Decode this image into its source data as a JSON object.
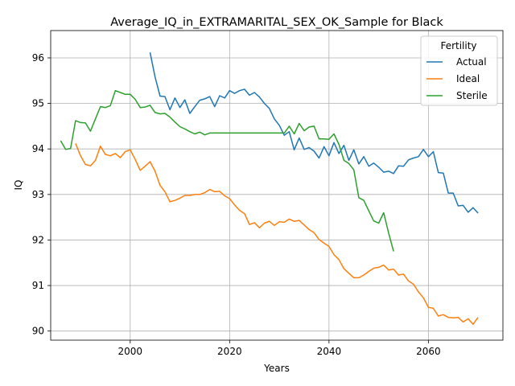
{
  "chart_data": {
    "type": "line",
    "title": "Average_IQ_in_EXTRAMARITAL_SEX_OK_Sample for Black",
    "xlabel": "Years",
    "ylabel": "IQ",
    "xlim": [
      1984,
      2075
    ],
    "ylim": [
      89.8,
      96.6
    ],
    "xticks": [
      "2000",
      "2020",
      "2040",
      "2060"
    ],
    "xtick_values": [
      2000,
      2020,
      2040,
      2060
    ],
    "yticks": [
      "90",
      "91",
      "92",
      "93",
      "94",
      "95",
      "96"
    ],
    "ytick_values": [
      90,
      91,
      92,
      93,
      94,
      95,
      96
    ],
    "grid": true,
    "legend": {
      "title": "Fertility",
      "placement": "top-right"
    },
    "series": [
      {
        "name": "Actual",
        "color": "#1f77b4",
        "x": [
          2004,
          2005,
          2006,
          2007,
          2008,
          2009,
          2010,
          2011,
          2012,
          2013,
          2014,
          2015,
          2016,
          2017,
          2018,
          2019,
          2020,
          2021,
          2022,
          2023,
          2024,
          2025,
          2026,
          2027,
          2028,
          2029,
          2030,
          2031,
          2032,
          2033,
          2034,
          2035,
          2036,
          2037,
          2038,
          2039,
          2040,
          2041,
          2042,
          2043,
          2044,
          2045,
          2046,
          2047,
          2048,
          2049,
          2050,
          2051,
          2052,
          2053,
          2054,
          2055,
          2056,
          2057,
          2058,
          2059,
          2060,
          2061,
          2062,
          2063,
          2064,
          2065,
          2066,
          2067,
          2068,
          2069,
          2070
        ],
        "y": [
          96.12,
          95.58,
          95.16,
          95.15,
          94.86,
          95.12,
          94.91,
          95.08,
          94.78,
          94.93,
          95.07,
          95.1,
          95.15,
          94.93,
          95.17,
          95.12,
          95.28,
          95.22,
          95.28,
          95.31,
          95.18,
          95.24,
          95.14,
          95.0,
          94.89,
          94.66,
          94.52,
          94.3,
          94.38,
          93.98,
          94.24,
          93.99,
          94.03,
          93.95,
          93.8,
          94.05,
          93.85,
          94.14,
          93.9,
          94.08,
          93.75,
          93.98,
          93.67,
          93.83,
          93.62,
          93.69,
          93.6,
          93.49,
          93.51,
          93.46,
          93.63,
          93.62,
          93.76,
          93.8,
          93.83,
          93.99,
          93.83,
          93.94,
          93.48,
          93.47,
          93.03,
          93.03,
          92.75,
          92.76,
          92.61,
          92.71,
          92.59
        ]
      },
      {
        "name": "Ideal",
        "color": "#ff7f0e",
        "x": [
          1989,
          1990,
          1991,
          1992,
          1993,
          1994,
          1995,
          1996,
          1997,
          1998,
          1999,
          2000,
          2001,
          2002,
          2003,
          2004,
          2005,
          2006,
          2007,
          2008,
          2009,
          2010,
          2011,
          2012,
          2013,
          2014,
          2015,
          2016,
          2017,
          2018,
          2019,
          2020,
          2021,
          2022,
          2023,
          2024,
          2025,
          2026,
          2027,
          2028,
          2029,
          2030,
          2031,
          2032,
          2033,
          2034,
          2035,
          2036,
          2037,
          2038,
          2039,
          2040,
          2041,
          2042,
          2043,
          2044,
          2045,
          2046,
          2047,
          2048,
          2049,
          2050,
          2051,
          2052,
          2053,
          2054,
          2055,
          2056,
          2057,
          2058,
          2059,
          2060,
          2061,
          2062,
          2063,
          2064,
          2065,
          2066,
          2067,
          2068,
          2069,
          2070
        ],
        "y": [
          94.12,
          93.85,
          93.66,
          93.63,
          93.75,
          94.06,
          93.88,
          93.85,
          93.9,
          93.81,
          93.94,
          93.98,
          93.77,
          93.53,
          93.62,
          93.72,
          93.51,
          93.2,
          93.06,
          92.84,
          92.87,
          92.92,
          92.98,
          92.98,
          93.0,
          93.0,
          93.04,
          93.11,
          93.06,
          93.07,
          92.97,
          92.91,
          92.77,
          92.65,
          92.58,
          92.34,
          92.38,
          92.27,
          92.37,
          92.41,
          92.32,
          92.4,
          92.39,
          92.46,
          92.41,
          92.43,
          92.33,
          92.23,
          92.16,
          92.01,
          91.93,
          91.86,
          91.68,
          91.57,
          91.37,
          91.27,
          91.17,
          91.17,
          91.23,
          91.31,
          91.38,
          91.4,
          91.45,
          91.34,
          91.36,
          91.23,
          91.25,
          91.1,
          91.03,
          90.86,
          90.73,
          90.52,
          90.5,
          90.33,
          90.36,
          90.3,
          90.29,
          90.3,
          90.2,
          90.27,
          90.15,
          90.3
        ]
      },
      {
        "name": "Sterile",
        "color": "#2ca02c",
        "x": [
          1986,
          1987,
          1988,
          1989,
          1990,
          1991,
          1992,
          1993,
          1994,
          1995,
          1996,
          1997,
          1998,
          1999,
          2000,
          2001,
          2002,
          2003,
          2004,
          2005,
          2006,
          2007,
          2008,
          2009,
          2010,
          2011,
          2012,
          2013,
          2014,
          2015,
          2016,
          2017,
          2018,
          2019,
          2020,
          2021,
          2022,
          2023,
          2024,
          2025,
          2026,
          2027,
          2028,
          2029,
          2030,
          2031,
          2032,
          2033,
          2034,
          2035,
          2036,
          2037,
          2038,
          2039,
          2040,
          2041,
          2042,
          2043,
          2044,
          2045,
          2046,
          2047,
          2048,
          2049,
          2050,
          2051,
          2052,
          2053
        ],
        "y": [
          94.18,
          93.99,
          94.01,
          94.62,
          94.58,
          94.57,
          94.39,
          94.66,
          94.93,
          94.91,
          94.95,
          95.28,
          95.24,
          95.2,
          95.2,
          95.09,
          94.91,
          94.92,
          94.96,
          94.8,
          94.77,
          94.78,
          94.7,
          94.59,
          94.49,
          94.44,
          94.38,
          94.33,
          94.37,
          94.31,
          94.35,
          94.35,
          94.35,
          94.35,
          94.35,
          94.35,
          94.35,
          94.35,
          94.35,
          94.35,
          94.35,
          94.35,
          94.35,
          94.35,
          94.35,
          94.35,
          94.5,
          94.33,
          94.56,
          94.4,
          94.48,
          94.5,
          94.22,
          94.22,
          94.21,
          94.33,
          94.1,
          93.75,
          93.68,
          93.54,
          92.93,
          92.87,
          92.64,
          92.42,
          92.37,
          92.6,
          92.15,
          91.75
        ]
      }
    ]
  }
}
